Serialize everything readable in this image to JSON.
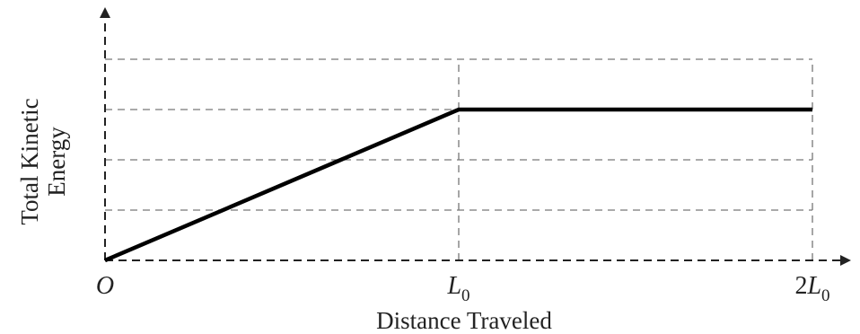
{
  "chart_data": {
    "type": "line",
    "title": "",
    "xlabel": "Distance Traveled",
    "ylabel_lines": [
      "Total Kinetic",
      "Energy"
    ],
    "x_ticks": [
      {
        "value": 0,
        "label": "O",
        "sub": ""
      },
      {
        "value": 1,
        "label": "L",
        "sub": "0"
      },
      {
        "value": 2,
        "label": "2L",
        "sub": "0"
      }
    ],
    "xlim": [
      0,
      2
    ],
    "ylim": [
      0,
      4
    ],
    "y_gridlines": [
      1,
      2,
      3,
      4
    ],
    "series": [
      {
        "points": [
          {
            "x": 0,
            "y": 0
          },
          {
            "x": 1,
            "y": 3
          },
          {
            "x": 2,
            "y": 3
          }
        ]
      }
    ],
    "grid": true,
    "grid_style": "dashed",
    "colors": {
      "line": "#000000",
      "grid": "#777777",
      "axis": "#222222"
    }
  }
}
